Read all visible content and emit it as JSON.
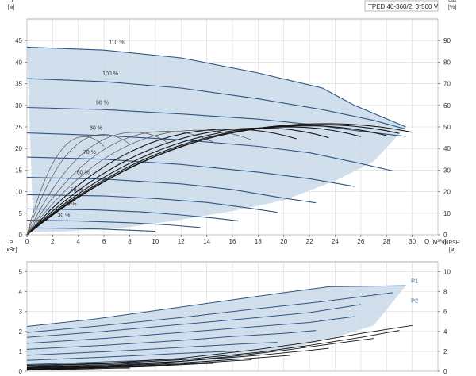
{
  "chart_data": [
    {
      "type": "line",
      "title": "TPED 40-360/2, 3*500 V",
      "xlabel": "Q [м³/ч]",
      "ylabel": "H",
      "ylabel_unit": "[м]",
      "y2label": "eta",
      "y2label_unit": "[%]",
      "xlim": [
        0,
        32
      ],
      "ylim": [
        0,
        50
      ],
      "y2lim": [
        0,
        100
      ],
      "x_ticks": [
        0,
        2,
        4,
        6,
        8,
        10,
        12,
        14,
        16,
        18,
        20,
        22,
        24,
        26,
        28,
        30
      ],
      "y_ticks": [
        0,
        5,
        10,
        15,
        20,
        25,
        30,
        35,
        40,
        45
      ],
      "y2_ticks": [
        0,
        10,
        20,
        30,
        40,
        50,
        60,
        70,
        80,
        90
      ],
      "grid": true,
      "envelope": {
        "upper": [
          [
            0,
            43.5
          ],
          [
            6,
            42.8
          ],
          [
            12,
            41
          ],
          [
            18,
            37.5
          ],
          [
            23,
            34
          ],
          [
            25.5,
            30
          ],
          [
            29.5,
            25
          ]
        ],
        "lower": [
          [
            0.5,
            0.6
          ],
          [
            3,
            0.8
          ],
          [
            7.5,
            1.6
          ],
          [
            12,
            3.5
          ],
          [
            16,
            5.5
          ],
          [
            20,
            8
          ],
          [
            24,
            12.5
          ],
          [
            27,
            17
          ],
          [
            29.5,
            25
          ]
        ]
      },
      "speed_curves": [
        {
          "name": "110 %",
          "points": [
            [
              0,
              43.5
            ],
            [
              6,
              42.8
            ],
            [
              12,
              41
            ],
            [
              18,
              37.5
            ],
            [
              23,
              34
            ],
            [
              25.5,
              30
            ],
            [
              29.5,
              25
            ]
          ]
        },
        {
          "name": "100 %",
          "points": [
            [
              0,
              36.2
            ],
            [
              6,
              35.5
            ],
            [
              12,
              34
            ],
            [
              18,
              31.5
            ],
            [
              23,
              29
            ],
            [
              27,
              26.5
            ],
            [
              29.5,
              24.5
            ]
          ]
        },
        {
          "name": "90 %",
          "points": [
            [
              0,
              29.5
            ],
            [
              6,
              29
            ],
            [
              12,
              28
            ],
            [
              18,
              26.8
            ],
            [
              22,
              25.6
            ],
            [
              26,
              24
            ],
            [
              29.5,
              22.8
            ]
          ]
        },
        {
          "name": "80 %",
          "points": [
            [
              0,
              23.6
            ],
            [
              6,
              23
            ],
            [
              12,
              22
            ],
            [
              18,
              20.5
            ],
            [
              22,
              19
            ],
            [
              26,
              16.5
            ],
            [
              28.5,
              14.8
            ]
          ]
        },
        {
          "name": "70 %",
          "points": [
            [
              0,
              18
            ],
            [
              6,
              17.5
            ],
            [
              12,
              16.3
            ],
            [
              18,
              14.5
            ],
            [
              22,
              13
            ],
            [
              25.5,
              11.2
            ]
          ]
        },
        {
          "name": "60 %",
          "points": [
            [
              0,
              13.3
            ],
            [
              6,
              12.9
            ],
            [
              12,
              11.8
            ],
            [
              16,
              10.5
            ],
            [
              20,
              8.5
            ],
            [
              22.5,
              7.4
            ]
          ]
        },
        {
          "name": "50 %",
          "points": [
            [
              0,
              9.3
            ],
            [
              6,
              9
            ],
            [
              10,
              8.4
            ],
            [
              14,
              7.5
            ],
            [
              17,
              6.3
            ],
            [
              19.5,
              5.2
            ]
          ]
        },
        {
          "name": "40 %",
          "points": [
            [
              0,
              6
            ],
            [
              5,
              5.8
            ],
            [
              9,
              5.3
            ],
            [
              12,
              4.6
            ],
            [
              14.5,
              3.9
            ],
            [
              16.5,
              3.2
            ]
          ]
        },
        {
          "name": "30 %",
          "points": [
            [
              0,
              3.4
            ],
            [
              4,
              3.2
            ],
            [
              8,
              2.8
            ],
            [
              11,
              2.3
            ],
            [
              13.5,
              1.7
            ]
          ]
        },
        {
          "name": "",
          "points": [
            [
              0,
              1.6
            ],
            [
              3,
              1.5
            ],
            [
              6,
              1.3
            ],
            [
              8.5,
              1
            ],
            [
              10,
              0.8
            ]
          ]
        }
      ]
    },
    {
      "type": "line",
      "xlim": [
        0,
        32
      ],
      "ylabel": "P",
      "ylabel_unit": "[кВт]",
      "y2label": "NPSH",
      "y2label_unit": "[м]",
      "ylim": [
        0,
        5.5
      ],
      "y2lim": [
        0,
        11
      ],
      "y_ticks": [
        0,
        1,
        2,
        3,
        4,
        5
      ],
      "y2_ticks": [
        0,
        2,
        4,
        6,
        8,
        10
      ],
      "grid": true,
      "envelope": {
        "upper": [
          [
            0,
            2.25
          ],
          [
            5,
            2.6
          ],
          [
            10,
            3.05
          ],
          [
            15,
            3.5
          ],
          [
            20,
            3.95
          ],
          [
            23.5,
            4.25
          ],
          [
            29.5,
            4.3
          ]
        ],
        "lower": [
          [
            0,
            0.08
          ],
          [
            10,
            0.22
          ],
          [
            16,
            0.6
          ],
          [
            20,
            1.05
          ],
          [
            24,
            1.7
          ],
          [
            27,
            2.3
          ],
          [
            29.5,
            4.3
          ]
        ]
      },
      "power_curves": [
        {
          "name": "P1",
          "points": [
            [
              0,
              2.25
            ],
            [
              5,
              2.6
            ],
            [
              10,
              3.05
            ],
            [
              15,
              3.5
            ],
            [
              20,
              3.95
            ],
            [
              23.5,
              4.25
            ],
            [
              29.5,
              4.3
            ]
          ]
        },
        {
          "name": "P2",
          "points": [
            [
              0,
              1.95
            ],
            [
              6,
              2.3
            ],
            [
              12,
              2.7
            ],
            [
              18,
              3.15
            ],
            [
              23,
              3.5
            ],
            [
              28.5,
              3.95
            ]
          ]
        },
        {
          "name": "",
          "points": [
            [
              0,
              1.7
            ],
            [
              6,
              2
            ],
            [
              12,
              2.35
            ],
            [
              18,
              2.7
            ],
            [
              22,
              2.95
            ],
            [
              26,
              3.35
            ]
          ]
        },
        {
          "name": "",
          "points": [
            [
              0,
              1.4
            ],
            [
              6,
              1.65
            ],
            [
              12,
              1.95
            ],
            [
              18,
              2.25
            ],
            [
              22,
              2.45
            ],
            [
              25.5,
              2.75
            ]
          ]
        },
        {
          "name": "",
          "points": [
            [
              0,
              1.1
            ],
            [
              6,
              1.3
            ],
            [
              12,
              1.55
            ],
            [
              16,
              1.75
            ],
            [
              20,
              1.9
            ],
            [
              22.5,
              2.05
            ]
          ]
        },
        {
          "name": "",
          "points": [
            [
              0,
              0.8
            ],
            [
              6,
              0.98
            ],
            [
              10,
              1.12
            ],
            [
              14,
              1.27
            ],
            [
              17,
              1.38
            ],
            [
              19.5,
              1.45
            ]
          ]
        },
        {
          "name": "",
          "points": [
            [
              0,
              0.55
            ],
            [
              5,
              0.68
            ],
            [
              9,
              0.8
            ],
            [
              12,
              0.9
            ],
            [
              14.5,
              0.97
            ],
            [
              16.5,
              1.02
            ]
          ]
        },
        {
          "name": "",
          "points": [
            [
              0,
              0.34
            ],
            [
              4,
              0.43
            ],
            [
              8,
              0.52
            ],
            [
              11,
              0.58
            ],
            [
              13.5,
              0.62
            ]
          ]
        },
        {
          "name": "",
          "points": [
            [
              0,
              0.18
            ],
            [
              3,
              0.23
            ],
            [
              6,
              0.28
            ],
            [
              8.5,
              0.31
            ],
            [
              10,
              0.33
            ]
          ]
        }
      ],
      "npsh_curves": [
        {
          "points": [
            [
              0,
              0.6
            ],
            [
              6,
              0.8
            ],
            [
              12,
              1.3
            ],
            [
              18,
              2.2
            ],
            [
              22,
              2.9
            ],
            [
              26,
              3.8
            ],
            [
              30,
              4.6
            ]
          ]
        },
        {
          "points": [
            [
              0,
              0.5
            ],
            [
              6,
              0.75
            ],
            [
              12,
              1.15
            ],
            [
              18,
              1.9
            ],
            [
              22,
              2.6
            ],
            [
              26,
              3.4
            ],
            [
              29,
              4.1
            ]
          ]
        },
        {
          "points": [
            [
              0,
              0.4
            ],
            [
              6,
              0.65
            ],
            [
              12,
              1.0
            ],
            [
              16,
              1.5
            ],
            [
              20,
              2.1
            ],
            [
              24,
              2.8
            ],
            [
              27,
              3.3
            ]
          ]
        },
        {
          "points": [
            [
              0,
              0.35
            ],
            [
              6,
              0.55
            ],
            [
              10,
              0.8
            ],
            [
              14,
              1.2
            ],
            [
              18,
              1.6
            ],
            [
              22,
              2.1
            ],
            [
              23.5,
              2.3
            ]
          ]
        },
        {
          "points": [
            [
              0,
              0.3
            ],
            [
              6,
              0.5
            ],
            [
              10,
              0.7
            ],
            [
              14,
              1.0
            ],
            [
              18,
              1.35
            ],
            [
              20.5,
              1.6
            ]
          ]
        },
        {
          "points": [
            [
              0,
              0.25
            ],
            [
              5,
              0.4
            ],
            [
              9,
              0.55
            ],
            [
              13,
              0.8
            ],
            [
              16,
              1.05
            ],
            [
              17.5,
              1.15
            ]
          ]
        },
        {
          "points": [
            [
              0,
              0.2
            ],
            [
              4,
              0.32
            ],
            [
              8,
              0.45
            ],
            [
              11,
              0.6
            ],
            [
              13.5,
              0.75
            ],
            [
              14.5,
              0.8
            ]
          ]
        },
        {
          "points": [
            [
              0,
              0.15
            ],
            [
              3,
              0.25
            ],
            [
              6,
              0.35
            ],
            [
              9,
              0.45
            ],
            [
              11,
              0.55
            ]
          ]
        },
        {
          "points": [
            [
              0,
              0.1
            ],
            [
              3,
              0.18
            ],
            [
              5,
              0.24
            ],
            [
              7,
              0.3
            ],
            [
              8,
              0.32
            ]
          ]
        }
      ]
    }
  ]
}
